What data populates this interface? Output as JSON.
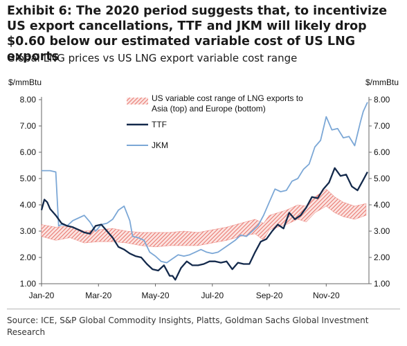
{
  "title": "Exhibit 6: The 2020 period suggests that, to incentivize US export cancellations, TTF and JKM will likely drop $0.60 below our estimated variable cost of US LNG exports",
  "subtitle": "Global LNG prices vs US LNG export variable cost range",
  "source": "Source: ICE, S&P Global Commodity Insights, Platts, Goldman Sachs Global Investment Research",
  "chart_data": {
    "type": "line",
    "ylabel_left": "$/mmBtu",
    "ylabel_right": "$/mmBtu",
    "ylim": [
      1.0,
      8.0
    ],
    "yticks": [
      "1.00",
      "2.00",
      "3.00",
      "4.00",
      "5.00",
      "6.00",
      "7.00",
      "8.00"
    ],
    "xlim": [
      0,
      11.5
    ],
    "xticks": [
      {
        "x": 0,
        "label": "Jan-20"
      },
      {
        "x": 2,
        "label": "Mar-20"
      },
      {
        "x": 4,
        "label": "May-20"
      },
      {
        "x": 6,
        "label": "Jul-20"
      },
      {
        "x": 8,
        "label": "Sep-20"
      },
      {
        "x": 10,
        "label": "Nov-20"
      }
    ],
    "grid": false,
    "legend": "top-center",
    "colors": {
      "band": "#e8736b",
      "ttf": "#13294b",
      "jkm": "#7ba7d6"
    },
    "band": {
      "name": "US variable cost range of LNG exports to Asia (top) and Europe (bottom)",
      "x": [
        0,
        0.5,
        1.0,
        1.5,
        2.0,
        2.5,
        3.0,
        3.5,
        4.0,
        4.5,
        5.0,
        5.5,
        6.0,
        6.5,
        7.0,
        7.5,
        7.8,
        8.0,
        8.3,
        8.6,
        9.0,
        9.3,
        9.6,
        10.0,
        10.3,
        10.6,
        11.0,
        11.4
      ],
      "upper": [
        3.25,
        3.15,
        3.2,
        3.0,
        3.05,
        3.1,
        3.0,
        2.95,
        2.95,
        2.95,
        3.0,
        2.95,
        3.05,
        3.15,
        3.3,
        3.45,
        3.3,
        3.6,
        3.7,
        3.8,
        4.0,
        3.95,
        4.3,
        4.6,
        4.3,
        4.1,
        3.95,
        4.05
      ],
      "lower": [
        2.8,
        2.65,
        2.75,
        2.55,
        2.6,
        2.6,
        2.55,
        2.45,
        2.4,
        2.45,
        2.45,
        2.45,
        2.55,
        2.65,
        2.8,
        2.9,
        2.65,
        3.05,
        3.15,
        3.25,
        3.45,
        3.35,
        3.7,
        3.95,
        3.7,
        3.55,
        3.45,
        3.6
      ]
    },
    "series": [
      {
        "name": "TTF",
        "x": [
          0,
          0.1,
          0.2,
          0.3,
          0.5,
          0.7,
          0.9,
          1.1,
          1.3,
          1.5,
          1.7,
          1.9,
          2.1,
          2.3,
          2.5,
          2.7,
          2.9,
          3.1,
          3.3,
          3.5,
          3.7,
          3.9,
          4.1,
          4.3,
          4.5,
          4.6,
          4.7,
          4.9,
          5.1,
          5.3,
          5.5,
          5.7,
          5.9,
          6.1,
          6.3,
          6.5,
          6.7,
          6.9,
          7.1,
          7.3,
          7.5,
          7.7,
          7.9,
          8.1,
          8.3,
          8.5,
          8.7,
          8.9,
          9.1,
          9.3,
          9.5,
          9.7,
          9.9,
          10.1,
          10.3,
          10.5,
          10.7,
          10.9,
          11.1,
          11.3,
          11.45
        ],
        "values": [
          3.8,
          4.2,
          4.1,
          3.85,
          3.6,
          3.3,
          3.2,
          3.15,
          3.05,
          2.95,
          2.9,
          3.2,
          3.25,
          3.0,
          2.75,
          2.4,
          2.3,
          2.15,
          2.05,
          2.0,
          1.75,
          1.55,
          1.5,
          1.7,
          1.3,
          1.3,
          1.15,
          1.6,
          1.85,
          1.7,
          1.7,
          1.75,
          1.85,
          1.85,
          1.8,
          1.85,
          1.55,
          1.8,
          1.75,
          1.75,
          2.2,
          2.6,
          2.7,
          3.0,
          3.25,
          3.1,
          3.7,
          3.45,
          3.6,
          3.9,
          4.3,
          4.25,
          4.6,
          4.85,
          5.4,
          5.1,
          5.15,
          4.7,
          4.55,
          4.95,
          5.25
        ]
      },
      {
        "name": "JKM",
        "x": [
          0,
          0.05,
          0.3,
          0.5,
          0.6,
          0.7,
          0.9,
          1.1,
          1.3,
          1.5,
          1.7,
          1.9,
          2.1,
          2.3,
          2.5,
          2.7,
          2.9,
          3.1,
          3.2,
          3.4,
          3.6,
          3.8,
          4.0,
          4.2,
          4.4,
          4.6,
          4.8,
          5.0,
          5.2,
          5.4,
          5.6,
          5.8,
          6.0,
          6.2,
          6.4,
          6.6,
          6.8,
          7.0,
          7.2,
          7.4,
          7.6,
          7.8,
          8.0,
          8.2,
          8.4,
          8.6,
          8.8,
          9.0,
          9.2,
          9.4,
          9.6,
          9.8,
          10.0,
          10.2,
          10.4,
          10.6,
          10.8,
          11.0,
          11.2,
          11.3,
          11.45
        ],
        "values": [
          5.3,
          5.3,
          5.3,
          5.25,
          3.2,
          3.25,
          3.2,
          3.4,
          3.5,
          3.6,
          3.35,
          3.0,
          3.25,
          3.3,
          3.45,
          3.8,
          3.95,
          3.4,
          2.8,
          2.75,
          2.65,
          2.2,
          2.05,
          1.85,
          1.8,
          1.95,
          2.1,
          2.05,
          2.1,
          2.2,
          2.3,
          2.2,
          2.15,
          2.2,
          2.35,
          2.5,
          2.65,
          2.85,
          2.8,
          3.0,
          3.2,
          3.6,
          4.1,
          4.6,
          4.5,
          4.55,
          4.9,
          5.0,
          5.35,
          5.55,
          6.2,
          6.45,
          7.35,
          6.85,
          6.9,
          6.55,
          6.6,
          6.25,
          7.15,
          7.55,
          7.9
        ]
      }
    ]
  }
}
